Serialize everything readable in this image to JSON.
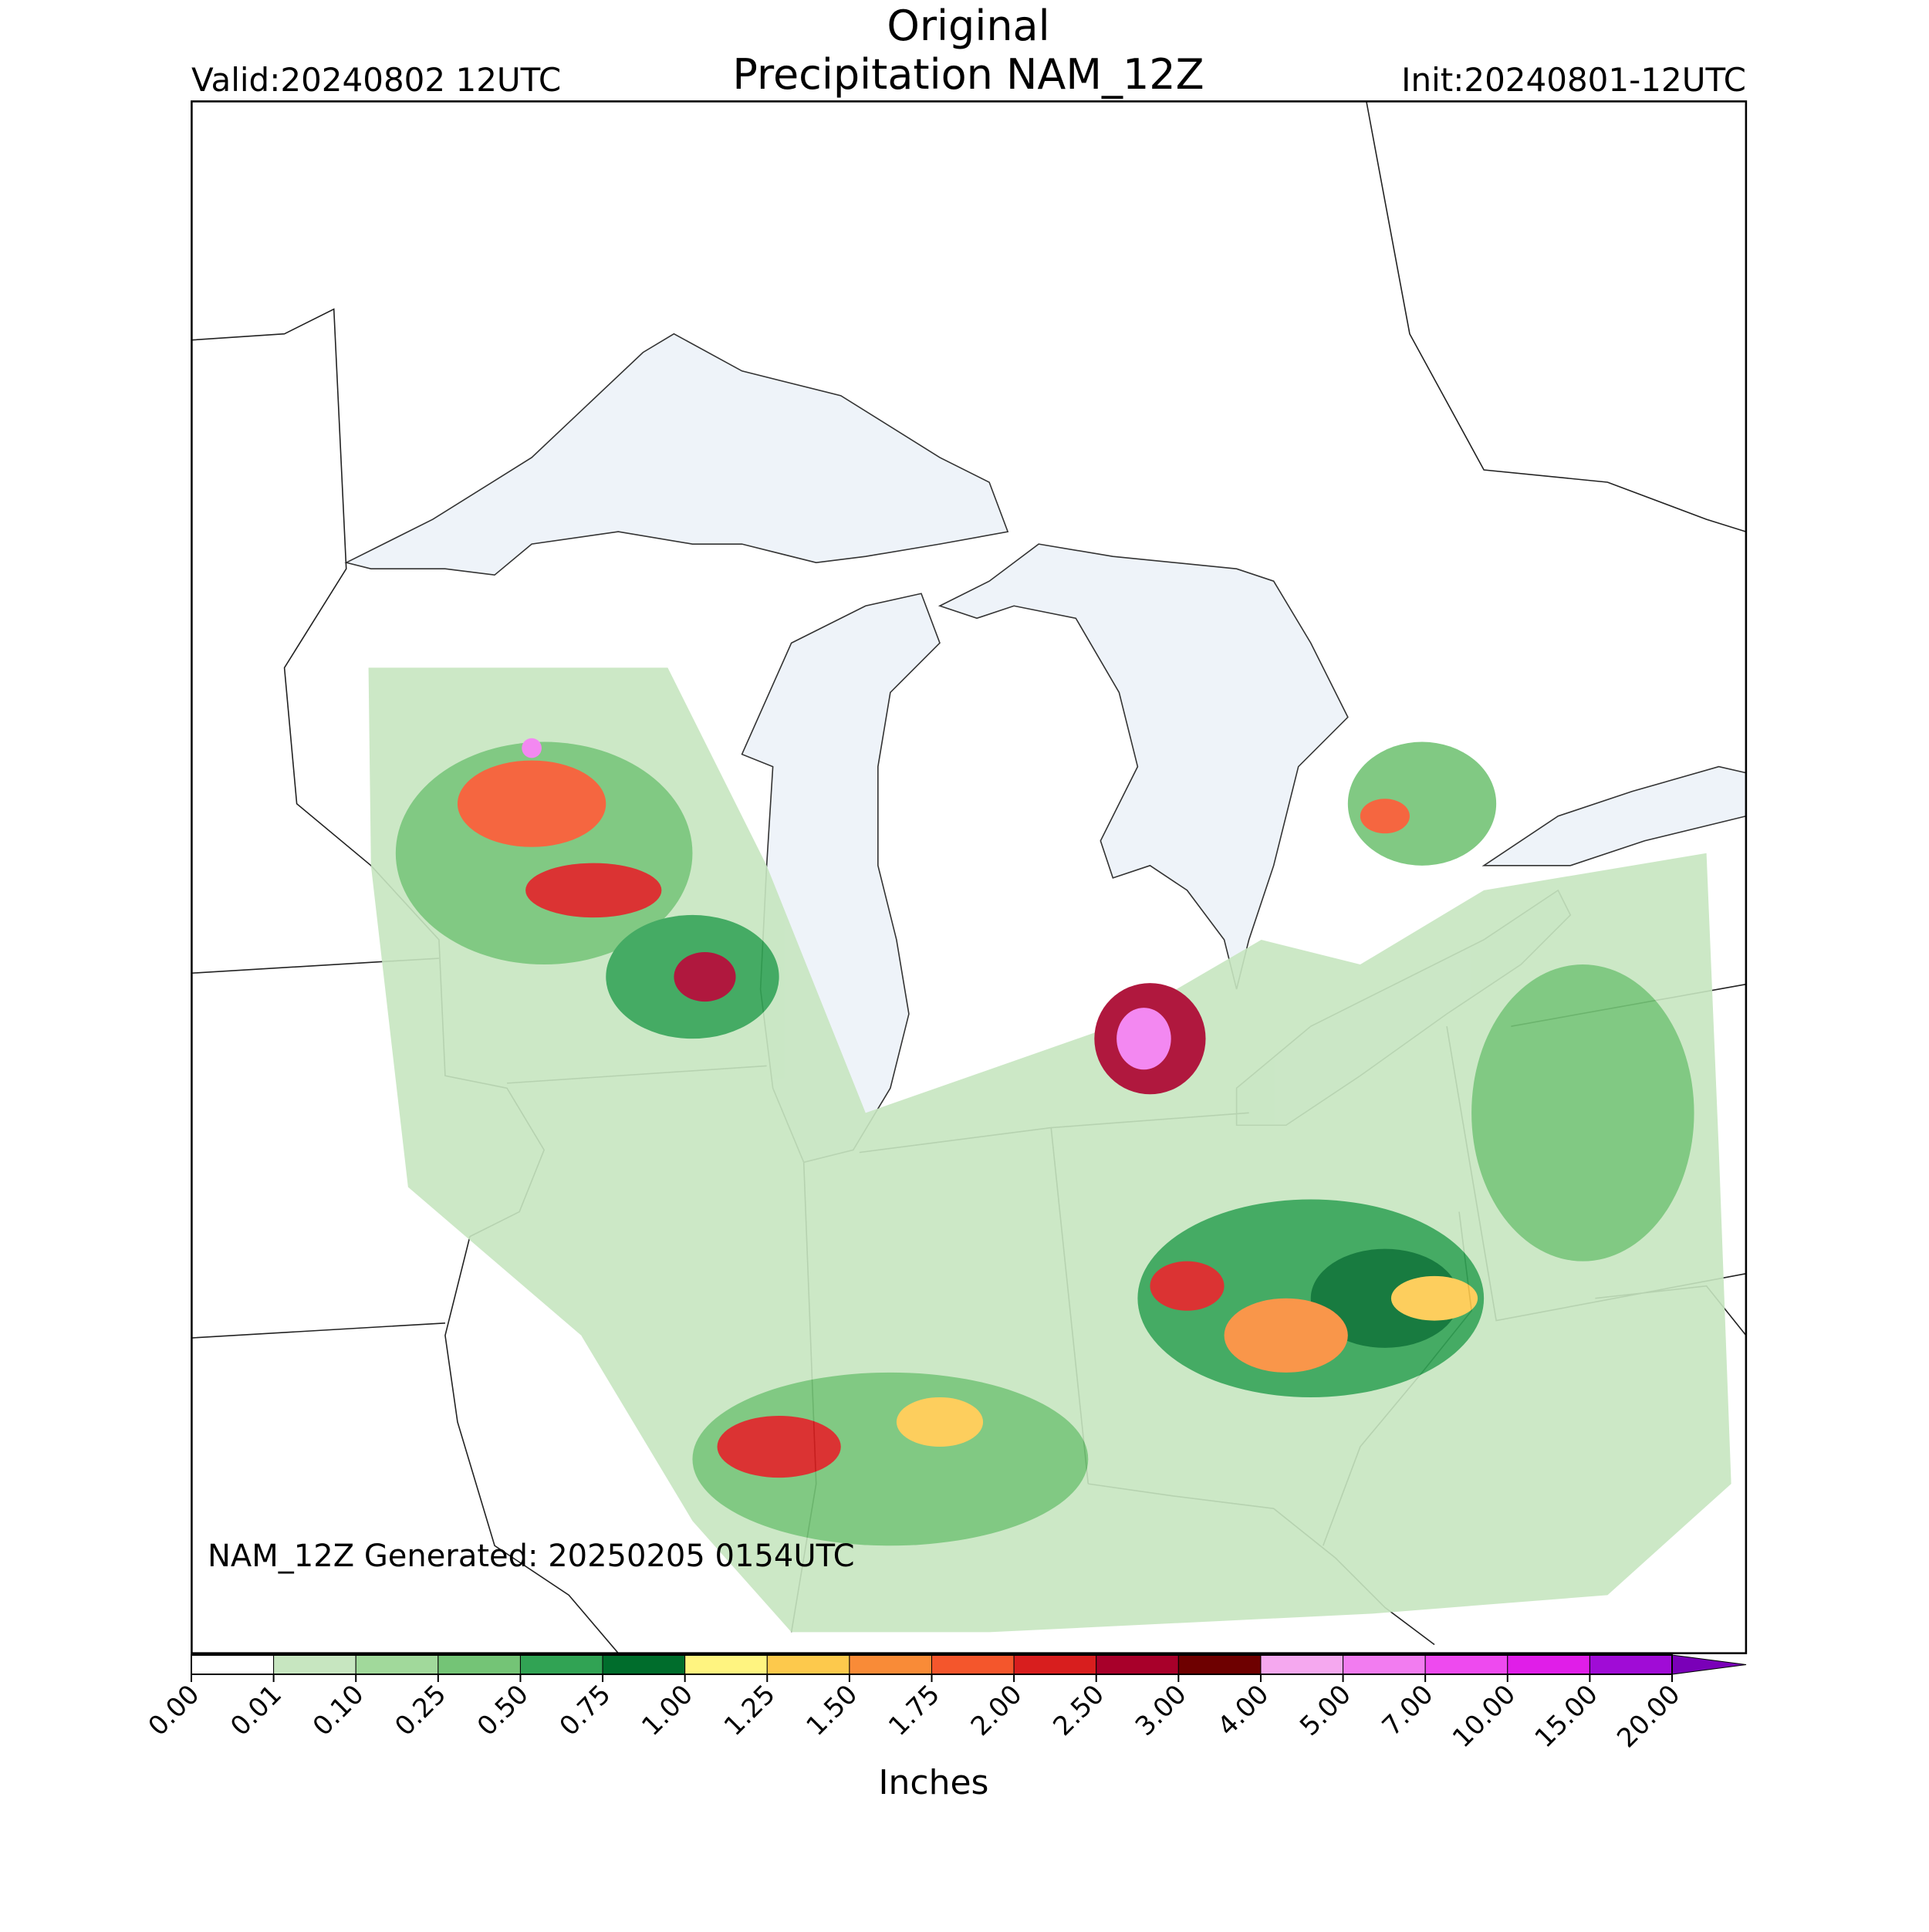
{
  "header": {
    "title": "Original",
    "subtitle": "Precipitation NAM_12Z",
    "valid": "Valid:20240802 12UTC",
    "init": "Init:20240801-12UTC"
  },
  "map": {
    "annotation": "NAM_12Z Generated: 20250205 0154UTC"
  },
  "colorbar": {
    "label": "Inches",
    "ticks": [
      {
        "value": 0,
        "label": "0.00"
      },
      {
        "value": 0.01,
        "label": "0.01"
      },
      {
        "value": 0.1,
        "label": "0.10"
      },
      {
        "value": 0.25,
        "label": "0.25"
      },
      {
        "value": 0.5,
        "label": "0.50"
      },
      {
        "value": 0.75,
        "label": "0.75"
      },
      {
        "value": 1,
        "label": "1.00"
      },
      {
        "value": 1.25,
        "label": "1.25"
      },
      {
        "value": 1.5,
        "label": "1.50"
      },
      {
        "value": 1.75,
        "label": "1.75"
      },
      {
        "value": 2,
        "label": "2.00"
      },
      {
        "value": 2.5,
        "label": "2.50"
      },
      {
        "value": 3,
        "label": "3.00"
      },
      {
        "value": 4,
        "label": "4.00"
      },
      {
        "value": 5,
        "label": "5.00"
      },
      {
        "value": 7,
        "label": "7.00"
      },
      {
        "value": 10,
        "label": "10.00"
      },
      {
        "value": 15,
        "label": "15.00"
      },
      {
        "value": 20,
        "label": "20.00"
      }
    ],
    "colors": [
      "#ffffff",
      "#c7e6c0",
      "#a1d99b",
      "#74c476",
      "#31a354",
      "#006d2c",
      "#fff480",
      "#fdc94c",
      "#f98b37",
      "#f4562c",
      "#d81e1e",
      "#a8002a",
      "#6e0000",
      "#f5a8ef",
      "#f27cf0",
      "#ee4aef",
      "#e01ee8",
      "#a00cd6"
    ],
    "extend_color": "#7a00b8"
  }
}
